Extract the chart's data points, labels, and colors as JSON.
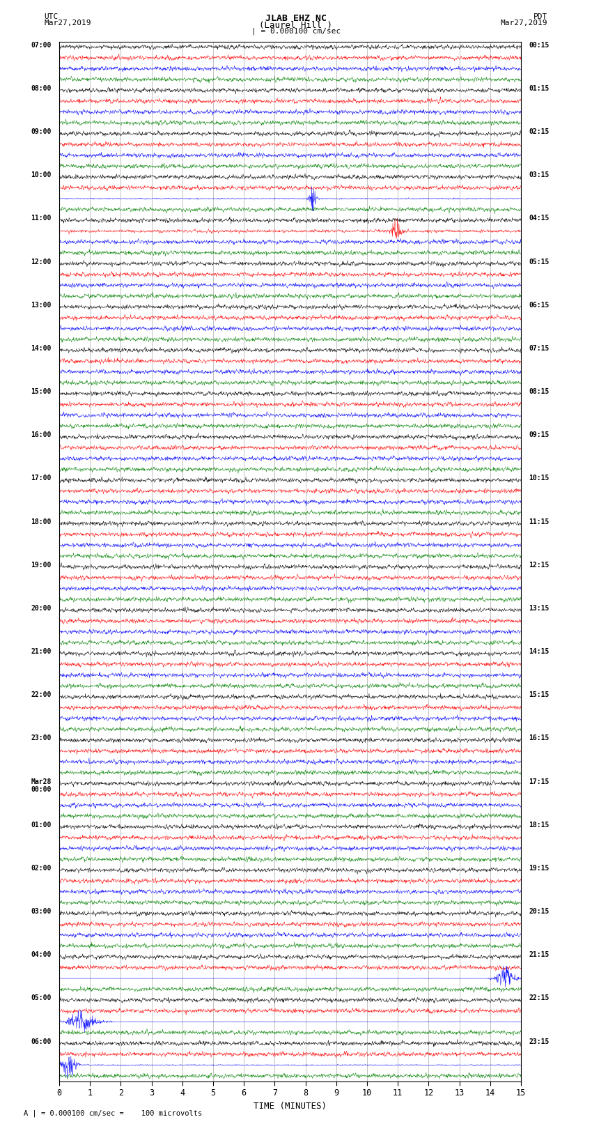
{
  "title_line1": "JLAB EHZ NC",
  "title_line2": "(Laurel Hill )",
  "scale_label": "| = 0.000100 cm/sec",
  "utc_label": "UTC",
  "utc_date": "Mar27,2019",
  "pdt_label": "PDT",
  "pdt_date": "Mar27,2019",
  "xlabel": "TIME (MINUTES)",
  "footer": "A | = 0.000100 cm/sec =    100 microvolts",
  "left_times": [
    "07:00",
    "08:00",
    "09:00",
    "10:00",
    "11:00",
    "12:00",
    "13:00",
    "14:00",
    "15:00",
    "16:00",
    "17:00",
    "18:00",
    "19:00",
    "20:00",
    "21:00",
    "22:00",
    "23:00",
    "Mar28\n00:00",
    "01:00",
    "02:00",
    "03:00",
    "04:00",
    "05:00",
    "06:00"
  ],
  "right_times": [
    "00:15",
    "01:15",
    "02:15",
    "03:15",
    "04:15",
    "05:15",
    "06:15",
    "07:15",
    "08:15",
    "09:15",
    "10:15",
    "11:15",
    "12:15",
    "13:15",
    "14:15",
    "15:15",
    "16:15",
    "17:15",
    "18:15",
    "19:15",
    "20:15",
    "21:15",
    "22:15",
    "23:15"
  ],
  "colors": [
    "black",
    "red",
    "blue",
    "green"
  ],
  "n_rows": 24,
  "n_traces_per_row": 4,
  "minutes": 15,
  "bg_color": "#ffffff",
  "grid_color": "#aaaaaa",
  "figsize": [
    8.5,
    16.13
  ],
  "dpi": 100
}
